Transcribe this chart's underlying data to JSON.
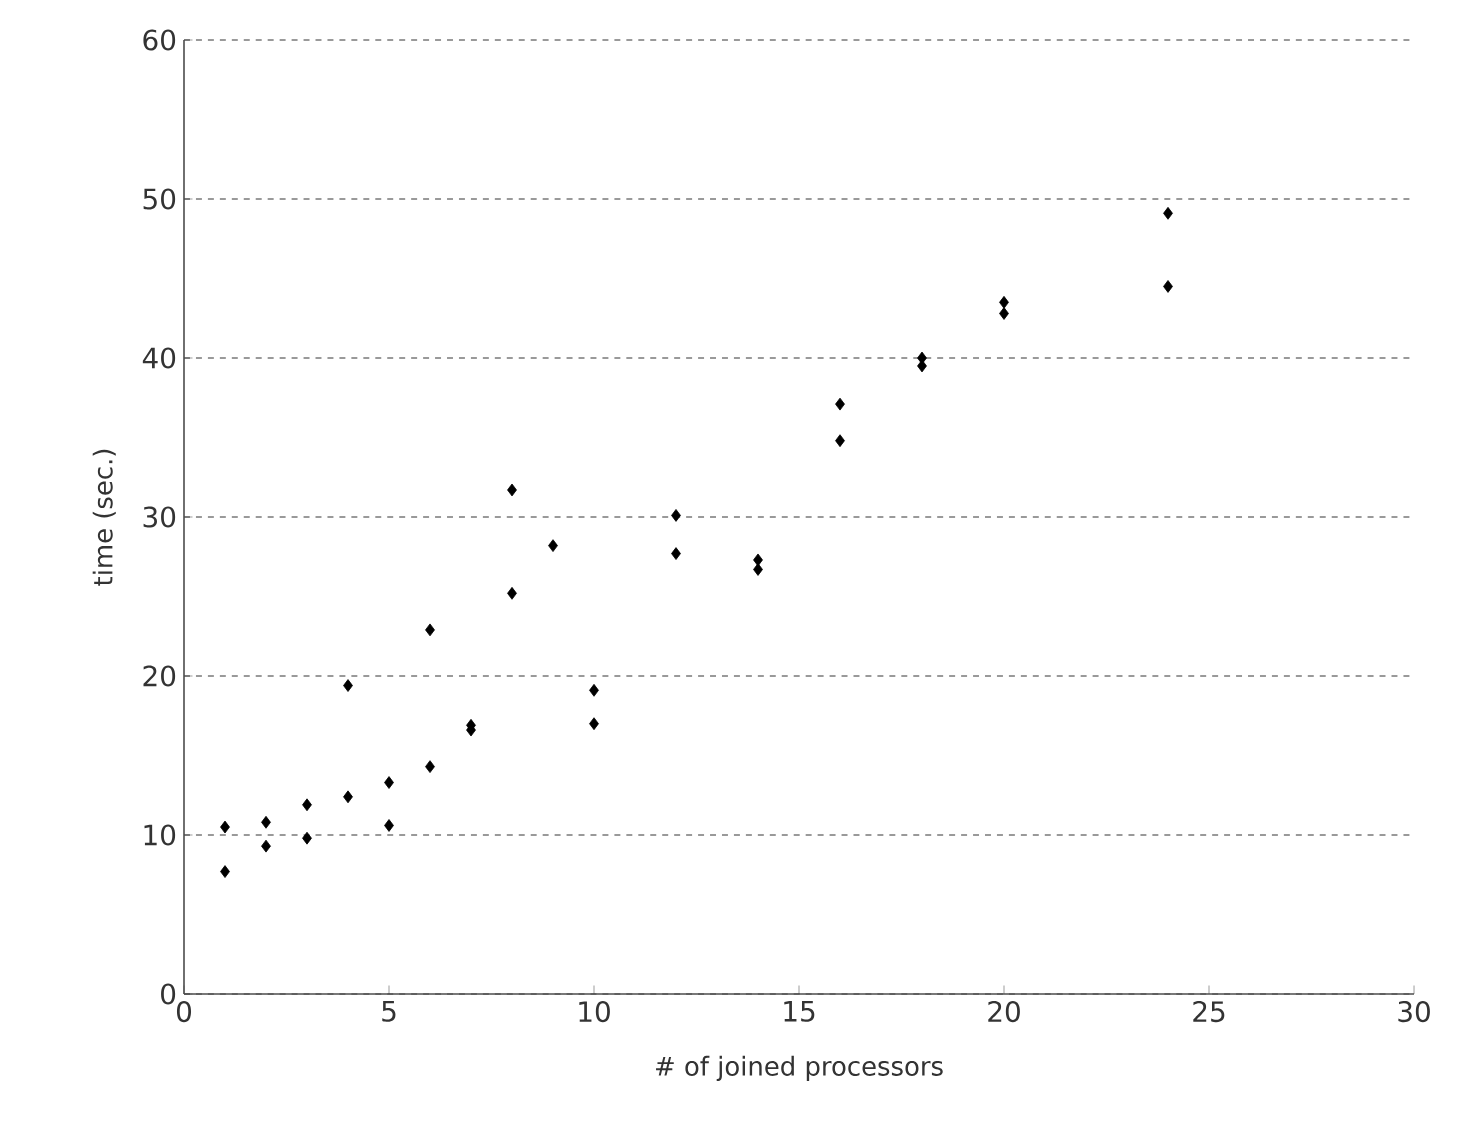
{
  "chart_data": {
    "type": "scatter",
    "xlabel": "# of joined processors",
    "ylabel": "time (sec.)",
    "x": [
      1,
      1,
      2,
      2,
      3,
      3,
      4,
      4,
      5,
      5,
      6,
      6,
      7,
      7,
      8,
      8,
      9,
      10,
      10,
      12,
      12,
      14,
      14,
      16,
      16,
      18,
      18,
      20,
      20,
      24,
      24
    ],
    "series": [
      {
        "color": "#000000",
        "values": [
          10.5,
          7.7,
          10.8,
          9.3,
          11.9,
          9.8,
          19.4,
          12.4,
          13.3,
          10.6,
          22.9,
          14.3,
          16.9,
          16.6,
          31.7,
          25.2,
          28.2,
          19.1,
          17.0,
          30.1,
          27.7,
          27.3,
          26.7,
          37.1,
          34.8,
          40.0,
          39.5,
          43.5,
          42.8,
          49.1,
          44.5
        ]
      }
    ],
    "xlim": [
      0,
      30
    ],
    "ylim": [
      0,
      60
    ],
    "xticks": [
      0,
      5,
      10,
      15,
      20,
      25,
      30
    ],
    "yticks": [
      0,
      10,
      20,
      30,
      40,
      50,
      60
    ],
    "grid": "y",
    "marker": "diamond"
  }
}
